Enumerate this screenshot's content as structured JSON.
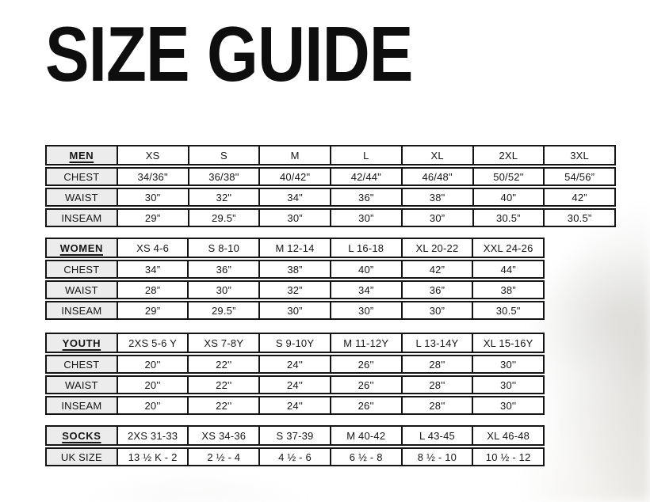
{
  "page": {
    "title": "SIZE GUIDE"
  },
  "colors": {
    "border": "#141414",
    "label_cell_background": "#ececec",
    "text": "#161616",
    "page_background": "#ffffff"
  },
  "tables": [
    {
      "id": "men",
      "header": {
        "label": "MEN",
        "sizes": [
          "XS",
          "S",
          "M",
          "L",
          "XL",
          "2XL",
          "3XL"
        ]
      },
      "rows": [
        {
          "label": "CHEST",
          "values": [
            "34/36\"",
            "36/38\"",
            "40/42\"",
            "42/44\"",
            "46/48\"",
            "50/52\"",
            "54/56”"
          ]
        },
        {
          "label": "WAIST",
          "values": [
            "30\"",
            "32\"",
            "34\"",
            "36\"",
            "38\"",
            "40\"",
            "42”"
          ]
        },
        {
          "label": "INSEAM",
          "values": [
            "29”",
            "29.5”",
            "30”",
            "30”",
            "30”",
            "30.5”",
            "30.5”"
          ]
        }
      ]
    },
    {
      "id": "women",
      "header": {
        "label": "WOMEN",
        "sizes": [
          "XS 4-6",
          "S 8-10",
          "M 12-14",
          "L 16-18",
          "XL 20-22",
          "XXL 24-26"
        ]
      },
      "rows": [
        {
          "label": "CHEST",
          "values": [
            "34”",
            "36”",
            "38”",
            "40”",
            "42”",
            "44”"
          ]
        },
        {
          "label": "WAIST",
          "values": [
            "28”",
            "30”",
            "32”",
            "34”",
            "36”",
            "38”"
          ]
        },
        {
          "label": "INSEAM",
          "values": [
            "29”",
            "29.5”",
            "30”",
            "30”",
            "30”",
            "30.5\""
          ]
        }
      ]
    },
    {
      "id": "youth",
      "header": {
        "label": "YOUTH",
        "sizes": [
          "2XS 5-6 Y",
          "XS 7-8Y",
          "S 9-10Y",
          "M 11-12Y",
          "L 13-14Y",
          "XL 15-16Y"
        ]
      },
      "rows": [
        {
          "label": "CHEST",
          "values": [
            "20''",
            "22''",
            "24''",
            "26''",
            "28''",
            "30''"
          ]
        },
        {
          "label": "WAIST",
          "values": [
            "20''",
            "22''",
            "24''",
            "26''",
            "28''",
            "30''"
          ]
        },
        {
          "label": "INSEAM",
          "values": [
            "20''",
            "22''",
            "24''",
            "26''",
            "28''",
            "30''"
          ]
        }
      ]
    },
    {
      "id": "socks",
      "header": {
        "label": "SOCKS",
        "sizes": [
          "2XS 31-33",
          "XS 34-36",
          "S 37-39",
          "M 40-42",
          "L 43-45",
          "XL 46-48"
        ]
      },
      "rows": [
        {
          "label": "UK SIZE",
          "values": [
            "13 ½ K - 2",
            "2 ½ - 4",
            "4 ½ - 6",
            "6 ½ - 8",
            "8 ½ - 10",
            "10 ½ - 12"
          ]
        }
      ]
    }
  ]
}
